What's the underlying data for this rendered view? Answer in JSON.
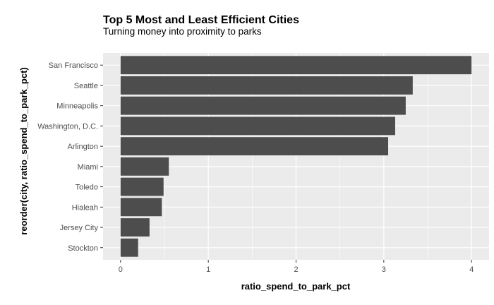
{
  "chart_data": {
    "type": "bar",
    "orientation": "horizontal",
    "title": "Top 5 Most and Least Efficient Cities",
    "subtitle": "Turning money into proximity to parks",
    "xlabel": "ratio_spend_to_park_pct",
    "ylabel": "reorder(city, ratio_spend_to_park_pct)",
    "categories": [
      "San Francisco",
      "Seattle",
      "Minneapolis",
      "Washington, D.C.",
      "Arlington",
      "Miami",
      "Toledo",
      "Hialeah",
      "Jersey City",
      "Stockton"
    ],
    "values": [
      4.0,
      3.33,
      3.25,
      3.13,
      3.05,
      0.55,
      0.49,
      0.47,
      0.33,
      0.2
    ],
    "xlim": [
      0,
      4
    ],
    "xticks": [
      0,
      1,
      2,
      3,
      4
    ],
    "grid": true,
    "colors": {
      "bar": "#4d4d4d",
      "panel": "#ebebeb",
      "grid": "#ffffff"
    }
  }
}
